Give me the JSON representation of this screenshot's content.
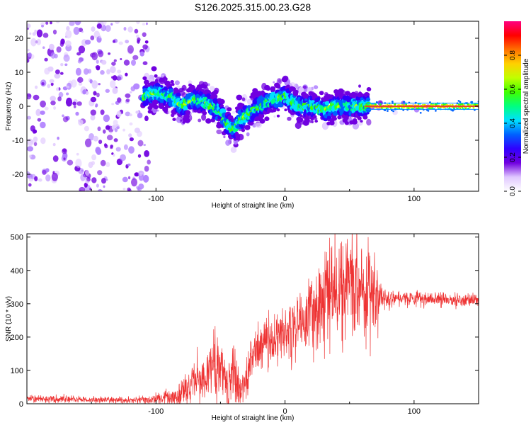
{
  "title": "S126.2025.315.00.23.G28",
  "chart_data": [
    {
      "type": "heatmap",
      "xlabel": "Height of straight line (km)",
      "ylabel": "Frequency (Hz)",
      "xlim": [
        -200,
        150
      ],
      "ylim": [
        -25,
        25
      ],
      "x_ticks": [
        -100,
        0,
        100
      ],
      "y_ticks": [
        -20,
        -10,
        0,
        10,
        20
      ],
      "colorbar": {
        "label": "Normalized spectral amplitude",
        "range": [
          0,
          1
        ],
        "ticks": [
          "0.0",
          "0.2",
          "0.4",
          "0.6",
          "0.8"
        ],
        "colormap": [
          "#ffffff",
          "#e0c8ff",
          "#7000e0",
          "#3000ff",
          "#0060ff",
          "#00e0ff",
          "#00ff80",
          "#40ff00",
          "#c0ff00",
          "#ffd000",
          "#ff7000",
          "#ff0000",
          "#ff0080"
        ]
      },
      "ridge": {
        "x": [
          -110,
          -100,
          -90,
          -80,
          -70,
          -60,
          -50,
          -45,
          -40,
          -35,
          -30,
          -20,
          -10,
          0,
          10,
          20,
          30,
          40,
          50,
          60,
          70,
          80,
          90,
          100,
          110,
          120,
          130,
          140,
          150
        ],
        "y": [
          3,
          4,
          3,
          0,
          2,
          1,
          -2,
          -5,
          -7,
          -4,
          -3,
          0,
          2,
          3,
          0,
          0,
          -1,
          0,
          0,
          0,
          0,
          0,
          0,
          0,
          0,
          0,
          0,
          0,
          0
        ]
      }
    },
    {
      "type": "line",
      "xlabel": "Height of straight line (km)",
      "ylabel": "SNR (10 * v/v)",
      "xlim": [
        -200,
        150
      ],
      "ylim": [
        0,
        510
      ],
      "x_ticks": [
        -100,
        0,
        100
      ],
      "y_ticks": [
        0,
        100,
        200,
        300,
        400,
        500
      ],
      "color": "#ee3333",
      "series": [
        {
          "x": [
            -200,
            -180,
            -160,
            -140,
            -120,
            -100,
            -90,
            -80,
            -70,
            -60,
            -55,
            -50,
            -45,
            -40,
            -35,
            -30,
            -25,
            -20,
            -10,
            0,
            10,
            20,
            30,
            40,
            50,
            60,
            70,
            75,
            80,
            90,
            100,
            110,
            120,
            130,
            140,
            150
          ],
          "y": [
            15,
            15,
            12,
            12,
            10,
            12,
            20,
            30,
            60,
            90,
            110,
            120,
            40,
            100,
            30,
            80,
            150,
            170,
            190,
            210,
            240,
            270,
            320,
            340,
            360,
            350,
            330,
            320,
            320,
            320,
            315,
            315,
            315,
            310,
            310,
            310
          ],
          "noise": [
            6,
            6,
            5,
            5,
            5,
            8,
            12,
            20,
            30,
            40,
            45,
            50,
            35,
            45,
            30,
            40,
            40,
            40,
            40,
            45,
            50,
            60,
            70,
            75,
            80,
            75,
            60,
            20,
            15,
            12,
            10,
            10,
            10,
            10,
            10,
            10
          ]
        }
      ]
    }
  ]
}
